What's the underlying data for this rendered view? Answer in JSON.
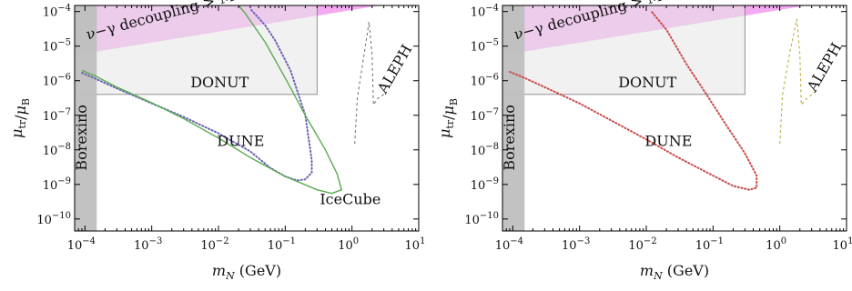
{
  "chart_data": [
    {
      "type": "line",
      "xlabel": "m_N (GeV)",
      "ylabel": "μ_tr/μ_B",
      "xscale": "log",
      "yscale": "log",
      "xlim": [
        7e-05,
        10
      ],
      "ylim": [
        4.5e-11,
        0.00015
      ],
      "x_ticks": [
        0.0001,
        0.001,
        0.01,
        0.1,
        1,
        10
      ],
      "x_tick_labels": [
        [
          "10",
          "−4"
        ],
        [
          "10",
          "−3"
        ],
        [
          "10",
          "−2"
        ],
        [
          "10",
          "−1"
        ],
        [
          "10",
          "0"
        ],
        [
          "10",
          "1"
        ]
      ],
      "y_ticks": [
        1e-10,
        1e-09,
        1e-08,
        1e-07,
        1e-06,
        1e-05,
        0.0001
      ],
      "y_tick_labels": [
        [
          "10",
          "−10"
        ],
        [
          "10",
          "−9"
        ],
        [
          "10",
          "−8"
        ],
        [
          "10",
          "−7"
        ],
        [
          "10",
          "−6"
        ],
        [
          "10",
          "−5"
        ],
        [
          "10",
          "−4"
        ]
      ],
      "regions": [
        {
          "label": "ν−γ decoupling > MeV",
          "color": "#f29bf0",
          "polygon": [
            [
              7e-05,
              5.5e-06
            ],
            [
              7e-05,
              0.00015
            ],
            [
              10,
              0.00015
            ],
            [
              2.6,
              0.00015
            ],
            [
              7e-05,
              5.5e-06
            ]
          ]
        },
        {
          "label": "DONUT",
          "color": "#e6e6e6",
          "x": [
            7e-05,
            0.3
          ],
          "y": [
            4e-07,
            0.00015
          ]
        },
        {
          "label": "Borexino",
          "color": "#bfbfbf",
          "x": [
            7e-05,
            0.00015
          ],
          "y": [
            4.5e-11,
            0.00015
          ]
        }
      ],
      "series": [
        {
          "label": "DUNE",
          "color": "#6b63b5",
          "style": "dotted",
          "points": [
            [
              9e-05,
              1.7e-06
            ],
            [
              0.00015,
              1.1e-06
            ],
            [
              0.0003,
              6e-07
            ],
            [
              0.001,
              2.2e-07
            ],
            [
              0.003,
              9e-08
            ],
            [
              0.01,
              3e-08
            ],
            [
              0.03,
              9e-09
            ],
            [
              0.06,
              3e-09
            ],
            [
              0.1,
              1.7e-09
            ],
            [
              0.15,
              1.3e-09
            ],
            [
              0.2,
              1.4e-09
            ],
            [
              0.25,
              2.2e-09
            ],
            [
              0.25,
              5e-09
            ],
            [
              0.2,
              1e-07
            ],
            [
              0.12,
              2e-06
            ],
            [
              0.07,
              1.5e-05
            ],
            [
              0.05,
              4e-05
            ],
            [
              0.03,
              0.00012
            ]
          ]
        },
        {
          "label": "IceCube",
          "color": "#5aab4f",
          "style": "solid",
          "points": [
            [
              9e-05,
              2e-06
            ],
            [
              0.00015,
              1.3e-06
            ],
            [
              0.0003,
              6.5e-07
            ],
            [
              0.001,
              2.3e-07
            ],
            [
              0.003,
              8e-08
            ],
            [
              0.01,
              2.2e-08
            ],
            [
              0.03,
              6e-09
            ],
            [
              0.1,
              1.7e-09
            ],
            [
              0.3,
              7e-10
            ],
            [
              0.5,
              5.5e-10
            ],
            [
              0.7,
              7e-10
            ],
            [
              0.6,
              2e-09
            ],
            [
              0.4,
              1e-08
            ],
            [
              0.2,
              1e-07
            ],
            [
              0.1,
              1.2e-06
            ],
            [
              0.05,
              1.3e-05
            ],
            [
              0.025,
              9e-05
            ],
            [
              0.02,
              0.00015
            ]
          ]
        },
        {
          "label": "ALEPH",
          "color": "#777777",
          "style": "dashed",
          "points": [
            [
              1.1,
              1.5e-08
            ],
            [
              1.2,
              3e-07
            ],
            [
              1.5,
              5e-06
            ],
            [
              1.8,
              5e-05
            ],
            [
              2.0,
              6e-06
            ],
            [
              2.1,
              2e-07
            ],
            [
              2.4,
              3e-07
            ],
            [
              3.0,
              4e-07
            ]
          ]
        }
      ],
      "annotations": [
        {
          "text": "DUNE",
          "x": 0.0095,
          "y": 1.3e-08
        },
        {
          "text": "IceCube",
          "x": 0.33,
          "y": 2.7e-10
        },
        {
          "text": "DONUT",
          "x": 0.0038,
          "y": 6.5e-07
        },
        {
          "text": "ALEPH",
          "x": 3.2,
          "y": 4e-07,
          "rotate": -60
        },
        {
          "text": "Borexino",
          "x": 0.000105,
          "y": 2.5e-09,
          "rotate": -90
        },
        {
          "text": "ν−γ decoupling > MeV",
          "x": 0.00011,
          "y": 1.55e-05,
          "rotate": -15
        }
      ]
    },
    {
      "type": "line",
      "xlabel": "m_N (GeV)",
      "ylabel": "μ_tr/μ_B",
      "xscale": "log",
      "yscale": "log",
      "xlim": [
        7e-05,
        10
      ],
      "ylim": [
        4.5e-11,
        0.00015
      ],
      "x_ticks": [
        0.0001,
        0.001,
        0.01,
        0.1,
        1,
        10
      ],
      "x_tick_labels": [
        [
          "10",
          "−4"
        ],
        [
          "10",
          "−3"
        ],
        [
          "10",
          "−2"
        ],
        [
          "10",
          "−1"
        ],
        [
          "10",
          "0"
        ],
        [
          "10",
          "1"
        ]
      ],
      "y_ticks": [
        1e-10,
        1e-09,
        1e-08,
        1e-07,
        1e-06,
        1e-05,
        0.0001
      ],
      "y_tick_labels": [
        [
          "10",
          "−10"
        ],
        [
          "10",
          "−9"
        ],
        [
          "10",
          "−8"
        ],
        [
          "10",
          "−7"
        ],
        [
          "10",
          "−6"
        ],
        [
          "10",
          "−5"
        ],
        [
          "10",
          "−4"
        ]
      ],
      "regions": [
        {
          "label": "ν−γ decoupling > MeV",
          "color": "#f29bf0",
          "polygon": [
            [
              7e-05,
              5.5e-06
            ],
            [
              7e-05,
              0.00015
            ],
            [
              10,
              0.00015
            ],
            [
              2.6,
              0.00015
            ],
            [
              7e-05,
              5.5e-06
            ]
          ]
        },
        {
          "label": "DONUT",
          "color": "#e6e6e6",
          "x": [
            7e-05,
            0.3
          ],
          "y": [
            4e-07,
            0.00015
          ]
        },
        {
          "label": "Borexino",
          "color": "#bfbfbf",
          "x": [
            7e-05,
            0.00015
          ],
          "y": [
            4.5e-11,
            0.00015
          ]
        }
      ],
      "series": [
        {
          "label": "DUNE",
          "color": "#cc4a4a",
          "style": "dotted",
          "points": [
            [
              9e-05,
              1.8e-06
            ],
            [
              0.00015,
              1.2e-06
            ],
            [
              0.0003,
              6.5e-07
            ],
            [
              0.001,
              2.2e-07
            ],
            [
              0.003,
              7e-08
            ],
            [
              0.01,
              2e-08
            ],
            [
              0.03,
              6e-09
            ],
            [
              0.1,
              1.8e-09
            ],
            [
              0.2,
              9e-10
            ],
            [
              0.35,
              7e-10
            ],
            [
              0.45,
              8e-10
            ],
            [
              0.45,
              1.8e-09
            ],
            [
              0.3,
              8e-09
            ],
            [
              0.15,
              6e-08
            ],
            [
              0.08,
              4e-07
            ],
            [
              0.04,
              3e-06
            ],
            [
              0.02,
              3e-05
            ],
            [
              0.012,
              0.0001
            ]
          ]
        },
        {
          "label": "ALEPH",
          "color": "#b5ad3a",
          "style": "dashed",
          "points": [
            [
              1.0,
              1.5e-08
            ],
            [
              1.1,
              4e-07
            ],
            [
              1.4,
              6e-06
            ],
            [
              1.8,
              6e-05
            ],
            [
              2.0,
              6e-06
            ],
            [
              2.1,
              2e-07
            ],
            [
              2.5,
              3e-07
            ],
            [
              3.5,
              5e-07
            ]
          ]
        }
      ],
      "annotations": [
        {
          "text": "DUNE",
          "x": 0.0095,
          "y": 1.3e-08
        },
        {
          "text": "DONUT",
          "x": 0.0038,
          "y": 6.5e-07
        },
        {
          "text": "ALEPH",
          "x": 3.4,
          "y": 4.5e-07,
          "rotate": -60
        },
        {
          "text": "Borexino",
          "x": 0.000105,
          "y": 2.5e-09,
          "rotate": -90
        },
        {
          "text": "ν−γ decoupling > MeV",
          "x": 0.00011,
          "y": 1.55e-05,
          "rotate": -15
        }
      ]
    }
  ]
}
